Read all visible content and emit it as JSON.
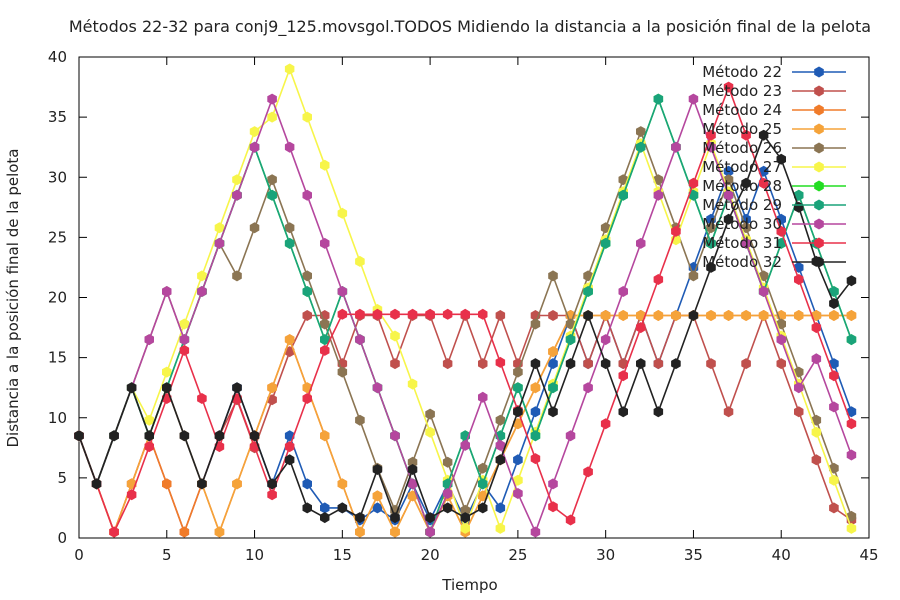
{
  "chart_data": {
    "type": "line",
    "title": "Métodos 22-32 para conj9_125.movsgol.TODOS Midiendo la distancia a la posición final de la pelota",
    "xlabel": "Tiempo",
    "ylabel": "Distancia a la posición final de la pelota",
    "xlim": [
      0,
      45
    ],
    "ylim": [
      0,
      40
    ],
    "xticks": [
      0,
      5,
      10,
      15,
      20,
      25,
      30,
      35,
      40,
      45
    ],
    "yticks": [
      0,
      5,
      10,
      15,
      20,
      25,
      30,
      35,
      40
    ],
    "grid": false,
    "legend_position": "top-right",
    "x": [
      0,
      1,
      2,
      3,
      4,
      5,
      6,
      7,
      8,
      9,
      10,
      11,
      12,
      13,
      14,
      15,
      16,
      17,
      18,
      19,
      20,
      21,
      22,
      23,
      24,
      25,
      26,
      27,
      28,
      29,
      30,
      31,
      32,
      33,
      34,
      35,
      36,
      37,
      38,
      39,
      40,
      41,
      42,
      43,
      44
    ],
    "series": [
      {
        "name": "Método 22",
        "color": "#1f5bb5",
        "values": [
          8.5,
          4.5,
          8.5,
          12.5,
          8.5,
          12.5,
          8.5,
          4.5,
          8.5,
          12.5,
          8.5,
          4.5,
          8.5,
          4.5,
          2.5,
          2.5,
          1.5,
          2.5,
          1.5,
          4.5,
          1.5,
          4.5,
          1.5,
          4.5,
          2.5,
          6.5,
          10.5,
          14.5,
          18.5,
          14.5,
          18.5,
          14.5,
          18.5,
          14.5,
          18.5,
          22.5,
          26.5,
          30.5,
          26.5,
          30.5,
          26.5,
          22.5,
          18.5,
          14.5,
          10.5
        ]
      },
      {
        "name": "Método 23",
        "color": "#c0504d",
        "values": [
          8.5,
          4.5,
          0.5,
          4.5,
          8.5,
          4.5,
          0.5,
          4.5,
          8.5,
          11.5,
          7.5,
          11.5,
          15.5,
          18.5,
          18.5,
          14.5,
          18.5,
          18.5,
          14.5,
          18.5,
          18.5,
          14.5,
          18.5,
          14.5,
          18.5,
          14.5,
          18.5,
          18.5,
          18.5,
          14.5,
          18.5,
          14.5,
          18.5,
          14.5,
          18.5,
          18.5,
          14.5,
          10.5,
          14.5,
          18.5,
          14.5,
          10.5,
          6.5,
          2.5,
          1.5
        ]
      },
      {
        "name": "Método 24",
        "color": "#f07b2a",
        "values": [
          8.5,
          4.5,
          0.5,
          4.5,
          8.5,
          4.5,
          0.5,
          4.5,
          0.5,
          4.5,
          8.5,
          12.5,
          16.5,
          12.5,
          8.5,
          4.5,
          0.5,
          3.5,
          0.5,
          3.5,
          0.5,
          3.5,
          0.5,
          3.5,
          6.5,
          9.5,
          12.5,
          15.5,
          18.5,
          18.5,
          18.5,
          18.5,
          18.5,
          18.5,
          18.5,
          18.5,
          18.5,
          18.5,
          18.5,
          18.5,
          18.5,
          18.5,
          18.5,
          18.5,
          18.5
        ]
      },
      {
        "name": "Método 25",
        "color": "#f5a33a",
        "values": [
          8.5,
          4.5,
          0.5,
          4.5,
          8.5,
          12.5,
          8.5,
          4.5,
          0.5,
          4.5,
          8.5,
          12.5,
          16.5,
          12.5,
          8.5,
          4.5,
          0.5,
          3.5,
          0.5,
          3.5,
          0.5,
          3.5,
          0.5,
          3.5,
          6.5,
          9.5,
          12.5,
          15.5,
          18.5,
          18.5,
          18.5,
          18.5,
          18.5,
          18.5,
          18.5,
          18.5,
          18.5,
          18.5,
          18.5,
          18.5,
          18.5,
          18.5,
          18.5,
          18.5,
          18.5
        ]
      },
      {
        "name": "Método 26",
        "color": "#8b7553",
        "values": [
          8.5,
          4.5,
          8.5,
          12.5,
          16.5,
          20.5,
          16.5,
          20.5,
          24.5,
          21.8,
          25.8,
          29.8,
          25.8,
          21.8,
          17.8,
          13.8,
          9.8,
          5.8,
          2.3,
          6.3,
          10.3,
          6.3,
          2.3,
          5.8,
          9.8,
          13.8,
          17.8,
          21.8,
          17.8,
          21.8,
          25.8,
          29.8,
          33.8,
          29.8,
          25.8,
          21.8,
          25.8,
          29.8,
          25.8,
          21.8,
          17.8,
          13.8,
          9.8,
          5.8,
          1.8
        ]
      },
      {
        "name": "Método 27",
        "color": "#f7f54a",
        "values": [
          8.5,
          4.5,
          8.5,
          12.5,
          9.8,
          13.8,
          17.8,
          21.8,
          25.8,
          29.8,
          33.8,
          35.0,
          39.0,
          35.0,
          31.0,
          27.0,
          23.0,
          19.0,
          16.8,
          12.8,
          8.8,
          4.8,
          0.8,
          4.8,
          0.8,
          4.8,
          8.8,
          12.8,
          16.8,
          20.8,
          24.8,
          28.8,
          32.8,
          28.8,
          24.8,
          28.8,
          32.8,
          28.8,
          24.8,
          20.8,
          16.8,
          12.8,
          8.8,
          4.8,
          0.8
        ]
      },
      {
        "name": "Método 28",
        "color": "#22dd22",
        "values": [
          8.5,
          4.5,
          8.5,
          12.5,
          8.5,
          12.5,
          16.5,
          20.5,
          24.5,
          28.5,
          32.5,
          28.5,
          24.5,
          20.5,
          16.5,
          20.5,
          16.5,
          12.5,
          8.5,
          4.5,
          0.5,
          4.5,
          8.5,
          4.5,
          8.5,
          12.5,
          8.5,
          12.5,
          16.5,
          20.5,
          24.5,
          28.5,
          32.5,
          36.5,
          32.5,
          28.5,
          24.5,
          28.5,
          24.5,
          20.5,
          24.5,
          28.5,
          24.5,
          20.5,
          16.5
        ]
      },
      {
        "name": "Método 29",
        "color": "#1aa37a",
        "values": [
          8.5,
          4.5,
          8.5,
          12.5,
          8.5,
          12.5,
          16.5,
          20.5,
          24.5,
          28.5,
          32.5,
          28.5,
          24.5,
          20.5,
          16.5,
          20.5,
          16.5,
          12.5,
          8.5,
          4.5,
          0.5,
          4.5,
          8.5,
          4.5,
          8.5,
          12.5,
          8.5,
          12.5,
          16.5,
          20.5,
          24.5,
          28.5,
          32.5,
          36.5,
          32.5,
          28.5,
          24.5,
          28.5,
          24.5,
          20.5,
          24.5,
          28.5,
          24.5,
          20.5,
          16.5
        ]
      },
      {
        "name": "Método 30",
        "color": "#b5479e",
        "values": [
          8.5,
          4.5,
          8.5,
          12.5,
          16.5,
          20.5,
          16.5,
          20.5,
          24.5,
          28.5,
          32.5,
          36.5,
          32.5,
          28.5,
          24.5,
          20.5,
          16.5,
          12.5,
          8.5,
          4.5,
          0.5,
          3.7,
          7.7,
          11.7,
          7.7,
          3.7,
          0.5,
          4.5,
          8.5,
          12.5,
          16.5,
          20.5,
          24.5,
          28.5,
          32.5,
          36.5,
          32.5,
          28.5,
          24.5,
          20.5,
          16.5,
          12.5,
          14.9,
          10.9,
          6.9
        ]
      },
      {
        "name": "Método 31",
        "color": "#e8304a",
        "values": [
          8.5,
          4.5,
          0.5,
          3.6,
          7.6,
          11.6,
          15.6,
          11.6,
          7.6,
          11.6,
          7.6,
          3.6,
          7.6,
          11.6,
          15.6,
          18.6,
          18.6,
          18.6,
          18.6,
          18.6,
          18.6,
          18.6,
          18.6,
          18.6,
          14.6,
          10.6,
          6.6,
          2.6,
          1.5,
          5.5,
          9.5,
          13.5,
          17.5,
          21.5,
          25.5,
          29.5,
          33.5,
          37.5,
          33.5,
          29.5,
          25.5,
          21.5,
          17.5,
          13.5,
          9.5
        ]
      },
      {
        "name": "Método 32",
        "color": "#222222",
        "values": [
          8.5,
          4.5,
          8.5,
          12.5,
          8.5,
          12.5,
          8.5,
          4.5,
          8.5,
          12.5,
          8.5,
          4.5,
          6.5,
          2.5,
          1.7,
          2.5,
          1.7,
          5.7,
          1.7,
          5.7,
          1.7,
          2.5,
          1.7,
          2.5,
          6.5,
          10.5,
          14.5,
          10.5,
          14.5,
          18.5,
          14.5,
          10.5,
          14.5,
          10.5,
          14.5,
          18.5,
          22.5,
          26.5,
          29.5,
          33.5,
          31.5,
          27.5,
          23.0,
          19.5,
          21.4
        ]
      }
    ]
  }
}
